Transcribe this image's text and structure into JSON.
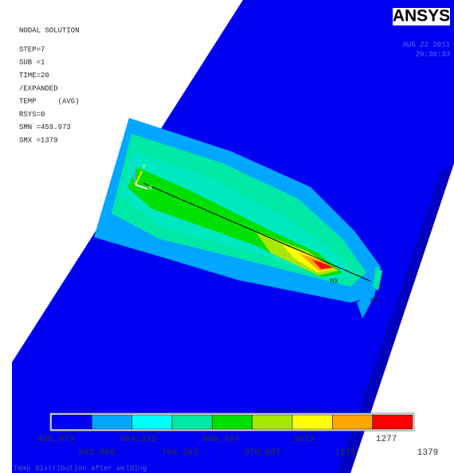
{
  "logo": "ANSYS",
  "info": [
    "NODAL SOLUTION",
    "STEP=7",
    "SUB =1",
    "TIME=20",
    "/EXPANDED",
    "TEMP     (AVG)",
    "RSYS=0",
    "SMN =459.973",
    "SMX =1379"
  ],
  "date": "AUG 22 2011",
  "time": "20:30:33",
  "axes": {
    "z": "Z",
    "y": "Y",
    "x": "X"
  },
  "markers": {
    "max": "MX",
    "min": "MN"
  },
  "legend": {
    "colors": [
      "#0000ff",
      "#00a6ff",
      "#00ffff",
      "#00e8a6",
      "#00e000",
      "#a6e800",
      "#ffff00",
      "#ffa600",
      "#ff0000"
    ],
    "labels": [
      "459.973",
      "562.056",
      "664.215",
      "766.343",
      "868.464",
      "970.587",
      "1073",
      "1175",
      "1277",
      "1379"
    ]
  },
  "caption": "Temp distribution after welding"
}
